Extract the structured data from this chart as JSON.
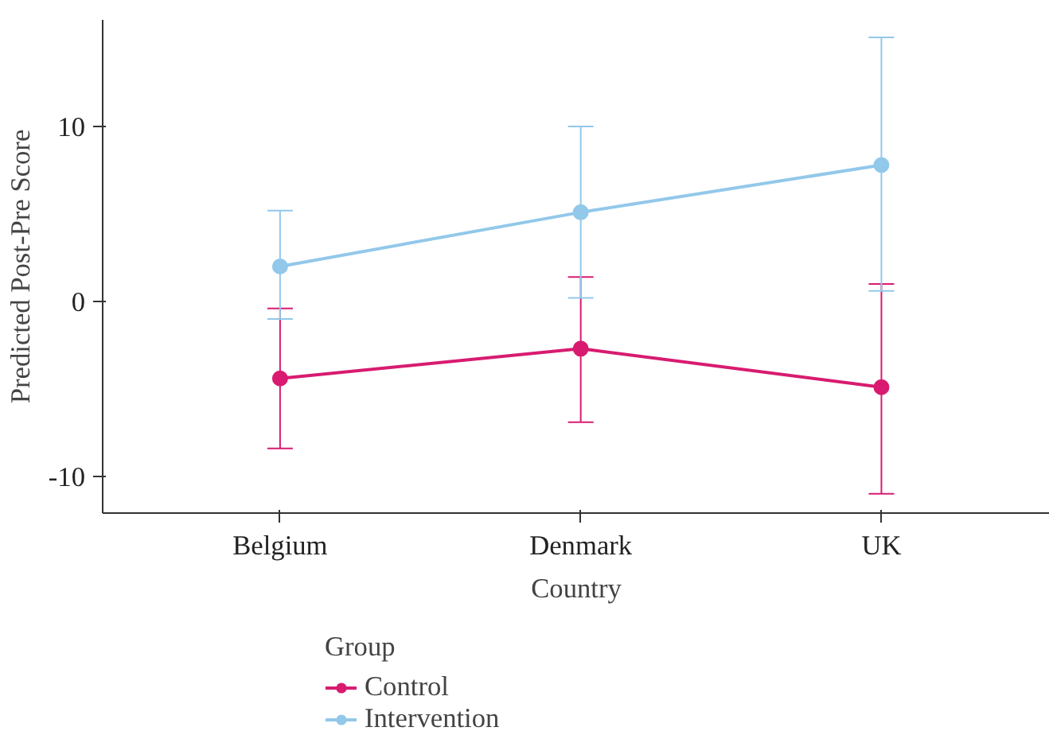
{
  "chart_data": {
    "type": "line",
    "xlabel": "Country",
    "ylabel": "Predicted Post-Pre Score",
    "legend_title": "Group",
    "categories": [
      "Belgium",
      "Denmark",
      "UK"
    ],
    "series": [
      {
        "name": "Control",
        "color": "#d81b70",
        "values": [
          -4.4,
          -2.7,
          -4.9
        ],
        "errors": [
          [
            -8.4,
            -0.4
          ],
          [
            -6.9,
            1.4
          ],
          [
            -11.0,
            1.0
          ]
        ]
      },
      {
        "name": "Intervention",
        "color": "#92c8ea",
        "values": [
          2.0,
          5.1,
          7.8
        ],
        "errors": [
          [
            -1.0,
            5.2
          ],
          [
            0.2,
            10.0
          ],
          [
            0.6,
            15.1
          ]
        ]
      }
    ],
    "ylim": [
      -12.1,
      16.1
    ],
    "yticks": [
      {
        "value": -10,
        "label": "-10"
      },
      0,
      10
    ],
    "grid": false,
    "legend": "bottom left",
    "marker": "circle",
    "line_style": "solid"
  }
}
